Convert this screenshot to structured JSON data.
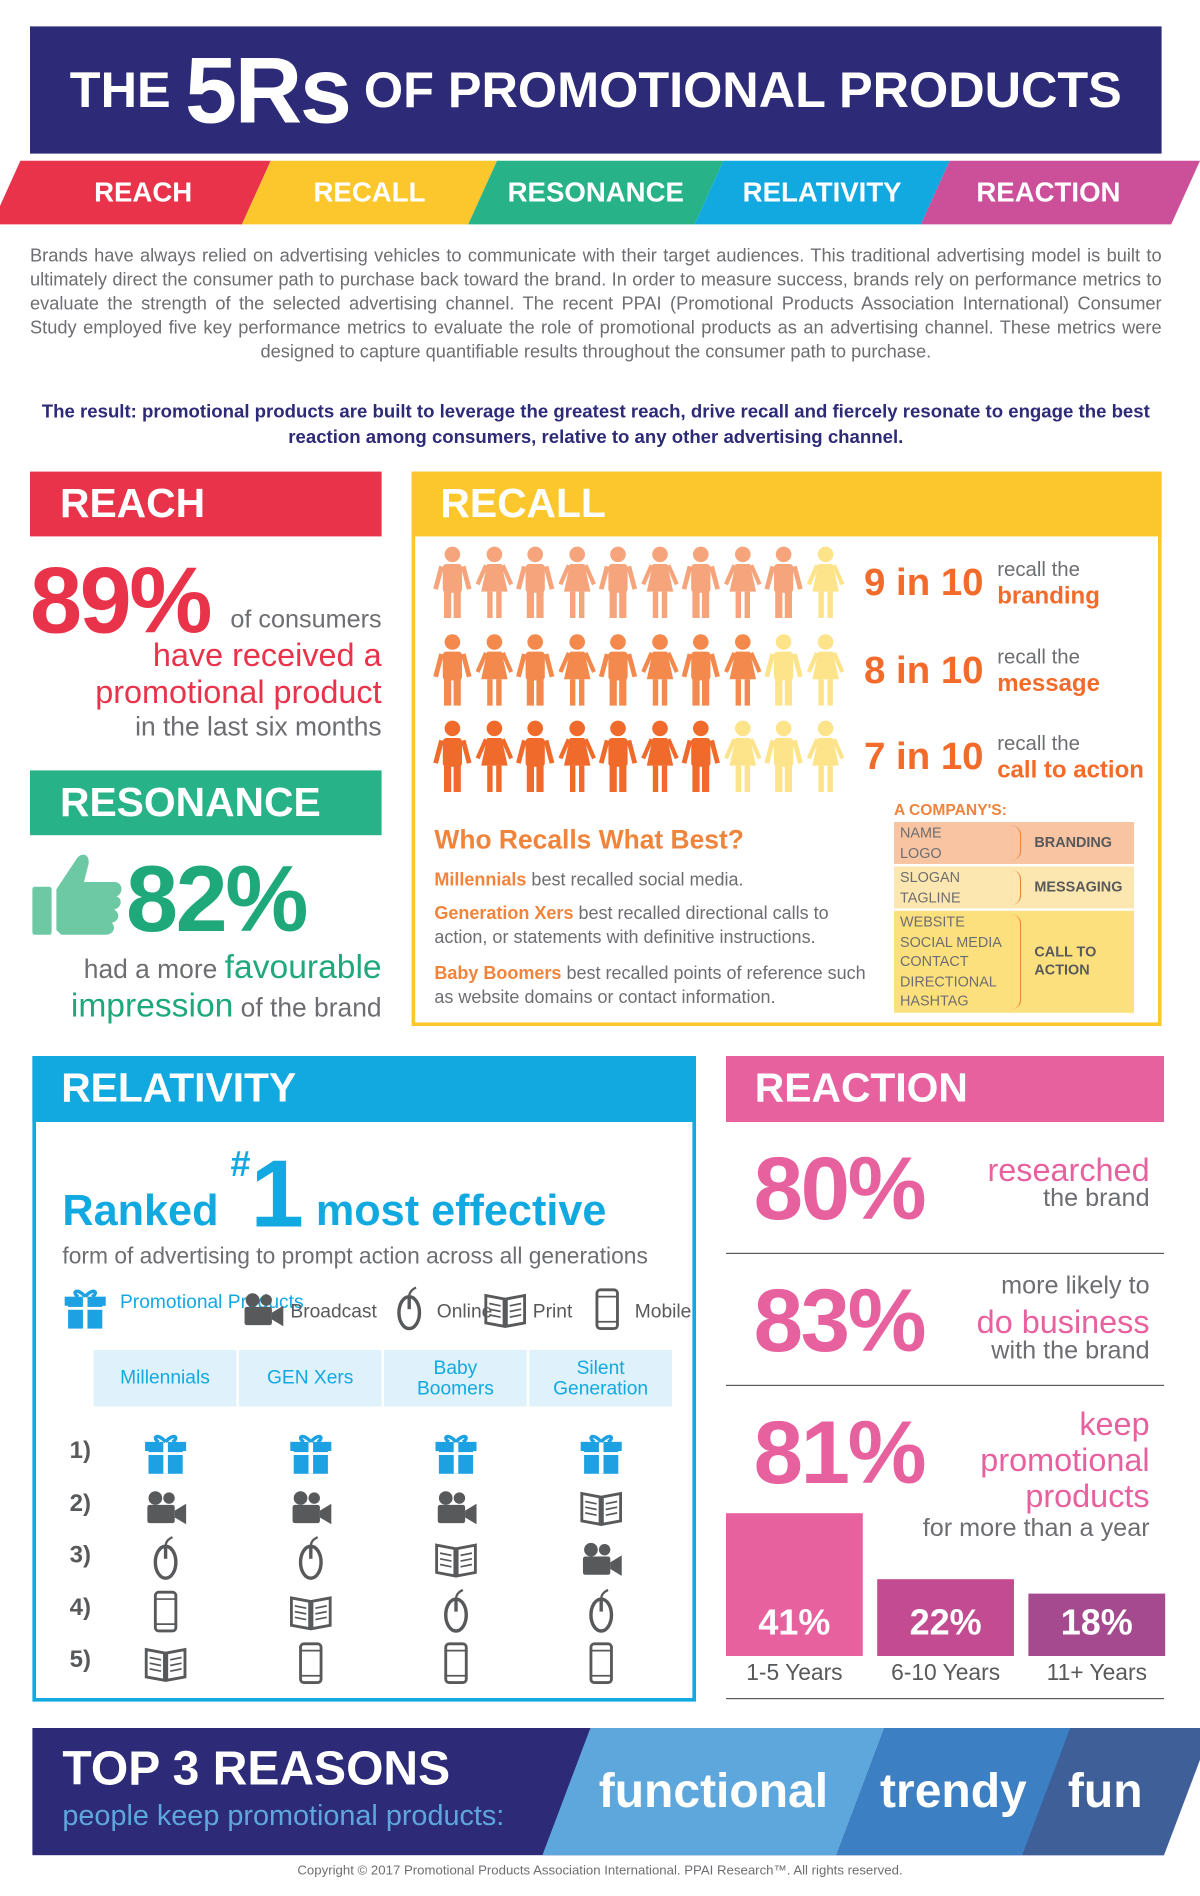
{
  "header": {
    "title_pre": "THE",
    "title_big": "5Rs",
    "title_post": "OF PROMOTIONAL PRODUCTS"
  },
  "tabs": [
    {
      "label": "REACH",
      "color": "#e8334a"
    },
    {
      "label": "RECALL",
      "color": "#fcc72d"
    },
    {
      "label": "RESONANCE",
      "color": "#27b287"
    },
    {
      "label": "RELATIVITY",
      "color": "#12a9e1"
    },
    {
      "label": "REACTION",
      "color": "#cc4f9a"
    }
  ],
  "intro": "Brands have always relied on advertising vehicles to communicate with their target audiences. This traditional advertising model is built to ultimately direct the consumer path to purchase back toward the brand. In order to measure success, brands rely on performance metrics to evaluate the strength of the selected advertising channel. The recent PPAI (Promotional Products Association International) Consumer Study employed five key performance metrics to evaluate the role of promotional products as an advertising channel. These metrics were designed to capture quantifiable results throughout the consumer path to purchase.",
  "result": "The result: promotional products are built to leverage the greatest reach, drive recall and fiercely resonate to engage the best reaction among consumers, relative to any other advertising channel.",
  "reach": {
    "heading": "REACH",
    "stat": "89%",
    "first_line": "of consumers",
    "lines": [
      {
        "text": "have received a",
        "color": "#e8334a"
      },
      {
        "text": "promotional product",
        "color": "#e8334a"
      },
      {
        "text": "in the last six months",
        "color": "#6d6e71"
      }
    ]
  },
  "resonance": {
    "heading": "RESONANCE",
    "stat": "82%",
    "line1_pre": "had a more",
    "line1_em": "favourable",
    "line2_em": "impression",
    "line2_post": "of the brand"
  },
  "recall": {
    "heading": "RECALL",
    "rows": [
      {
        "ratio": "9 in 10",
        "text": "recall the",
        "em": "branding"
      },
      {
        "ratio": "8 in 10",
        "text": "recall the",
        "em": "message"
      },
      {
        "ratio": "7 in 10",
        "text": "recall the",
        "em": "call to action"
      }
    ],
    "who_title": "Who Recalls What Best?",
    "who": [
      {
        "em": "Millennials",
        "text": "best recalled social media."
      },
      {
        "em": "Generation Xers",
        "text": "best recalled directional calls to action, or statements with definitive instructions."
      },
      {
        "em": "Baby Boomers",
        "text": "best recalled points of reference such as website domains or contact information."
      }
    ],
    "company": {
      "title": "A COMPANY'S:",
      "groups": [
        {
          "items": [
            "NAME",
            "LOGO"
          ],
          "label": "BRANDING",
          "color": "#f8c4a1"
        },
        {
          "items": [
            "SLOGAN",
            "TAGLINE"
          ],
          "label": "MESSAGING",
          "color": "#fde7b0"
        },
        {
          "items": [
            "WEBSITE",
            "SOCIAL MEDIA",
            "CONTACT",
            "DIRECTIONAL",
            "HASHTAG"
          ],
          "label": "CALL TO ACTION",
          "color": "#fde07e"
        }
      ]
    }
  },
  "relativity": {
    "heading": "RELATIVITY",
    "ranked": "Ranked",
    "hash": "#",
    "one": "1",
    "most": "most effective",
    "sub": "form of advertising to prompt action across all generations",
    "legend": [
      "Promotional Products",
      "Broadcast",
      "Online",
      "Print",
      "Mobile"
    ],
    "columns": [
      "Millennials",
      "GEN Xers",
      "Baby Boomers",
      "Silent Generation"
    ],
    "ranks": [
      "1)",
      "2)",
      "3)",
      "4)",
      "5)"
    ]
  },
  "reaction": {
    "heading": "REACTION",
    "stats": [
      {
        "value": "80%",
        "lines": [
          {
            "text": "researched",
            "color": "#e8619f"
          },
          {
            "text": "the brand",
            "color": "#6d6e71"
          }
        ]
      },
      {
        "value": "83%",
        "lines": [
          {
            "text": "more likely to",
            "color": "#6d6e71"
          },
          {
            "text": "do business",
            "color": "#e8619f"
          },
          {
            "text": "with the brand",
            "color": "#6d6e71"
          }
        ]
      },
      {
        "value": "81%",
        "lines": [
          {
            "text": "keep",
            "color": "#e8619f"
          },
          {
            "text": "promotional",
            "color": "#e8619f"
          },
          {
            "text": "products",
            "color": "#e8619f"
          },
          {
            "text": "for more than a year",
            "color": "#6d6e71"
          }
        ]
      }
    ],
    "years": [
      {
        "value": 41,
        "label": "41%",
        "period": "1-5 Years",
        "color": "#e8619f"
      },
      {
        "value": 22,
        "label": "22%",
        "period": "6-10 Years",
        "color": "#c24b92"
      },
      {
        "value": 18,
        "label": "18%",
        "period": "11+ Years",
        "color": "#a54a8e"
      }
    ]
  },
  "footer": {
    "title": "TOP 3 REASONS",
    "sub": "people keep promotional products:",
    "reasons": [
      {
        "text": "functional",
        "color": "#5ea7dc"
      },
      {
        "text": "trendy",
        "color": "#3d7fc3"
      },
      {
        "text": "fun",
        "color": "#3f5f98"
      }
    ]
  },
  "copyright": "Copyright © 2017 Promotional Products Association International. PPAI Research™. All rights reserved."
}
